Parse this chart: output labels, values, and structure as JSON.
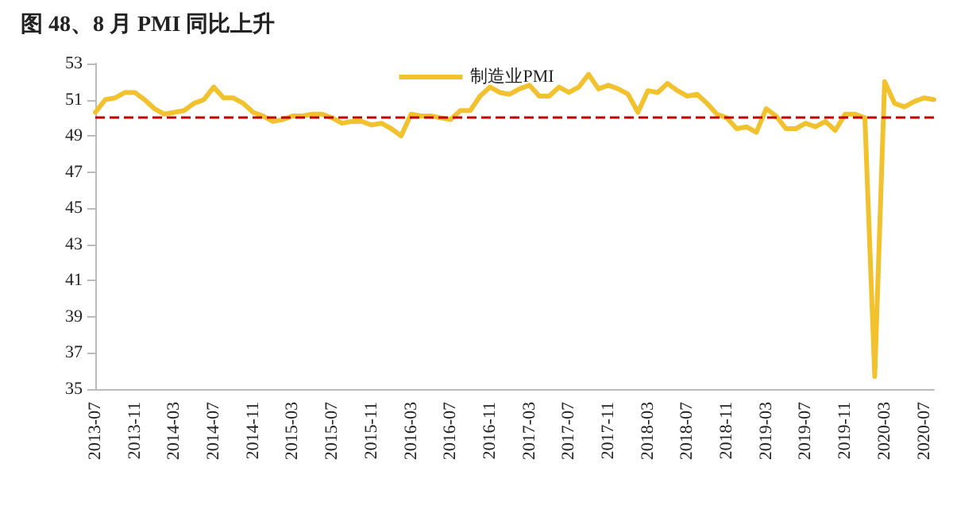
{
  "chart_data": {
    "type": "line",
    "title": "图 48、8 月 PMI 同比上升",
    "categories": [
      "2013-07",
      null,
      null,
      null,
      "2013-11",
      null,
      null,
      null,
      "2014-03",
      null,
      null,
      null,
      "2014-07",
      null,
      null,
      null,
      "2014-11",
      null,
      null,
      null,
      "2015-03",
      null,
      null,
      null,
      "2015-07",
      null,
      null,
      null,
      "2015-11",
      null,
      null,
      null,
      "2016-03",
      null,
      null,
      null,
      "2016-07",
      null,
      null,
      null,
      "2016-11",
      null,
      null,
      null,
      "2017-03",
      null,
      null,
      null,
      "2017-07",
      null,
      null,
      null,
      "2017-11",
      null,
      null,
      null,
      "2018-03",
      null,
      null,
      null,
      "2018-07",
      null,
      null,
      null,
      "2018-11",
      null,
      null,
      null,
      "2019-03",
      null,
      null,
      null,
      "2019-07",
      null,
      null,
      null,
      "2019-11",
      null,
      null,
      null,
      "2020-03",
      null,
      null,
      null,
      "2020-07",
      null
    ],
    "series": [
      {
        "name": "制造业PMI",
        "color": "#f2c12e",
        "values": [
          50.3,
          51.0,
          51.1,
          51.4,
          51.4,
          51.0,
          50.5,
          50.2,
          50.3,
          50.4,
          50.8,
          51.0,
          51.7,
          51.1,
          51.1,
          50.8,
          50.3,
          50.1,
          49.8,
          49.9,
          50.1,
          50.1,
          50.2,
          50.2,
          50.0,
          49.7,
          49.8,
          49.8,
          49.6,
          49.7,
          49.4,
          49.0,
          50.2,
          50.1,
          50.1,
          50.0,
          49.9,
          50.4,
          50.4,
          51.2,
          51.7,
          51.4,
          51.3,
          51.6,
          51.8,
          51.2,
          51.2,
          51.7,
          51.4,
          51.7,
          52.4,
          51.6,
          51.8,
          51.6,
          51.3,
          50.3,
          51.5,
          51.4,
          51.9,
          51.5,
          51.2,
          51.3,
          50.8,
          50.2,
          50.0,
          49.4,
          49.5,
          49.2,
          50.5,
          50.1,
          49.4,
          49.4,
          49.7,
          49.5,
          49.8,
          49.3,
          50.2,
          50.2,
          50.0,
          35.7,
          52.0,
          50.8,
          50.6,
          50.9,
          51.1,
          51.0
        ]
      }
    ],
    "ylim": [
      35,
      53
    ],
    "yticks": [
      35,
      37,
      39,
      41,
      43,
      45,
      47,
      49,
      51,
      53
    ],
    "grid": false,
    "legend": "top",
    "marker": "none",
    "line_style": "solid",
    "ref_lines": [
      {
        "axis": "y",
        "value": 50,
        "color": "#c00000",
        "line_style": "dashed"
      }
    ]
  }
}
